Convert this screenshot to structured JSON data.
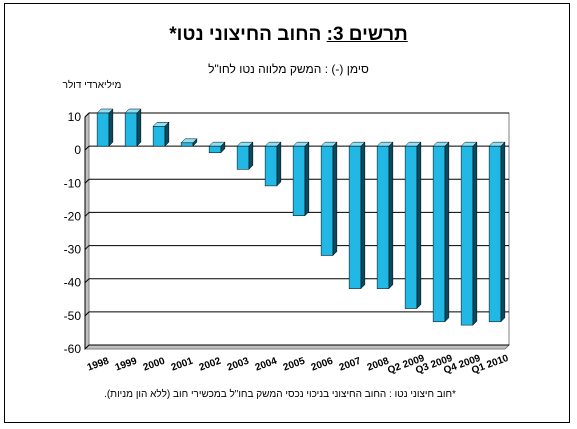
{
  "title_label": "תרשים 3:",
  "title_rest": "החוב החיצוני נטו*",
  "subtitle": "סימן (-) : המשק מלווה נטו לחו\"ל",
  "unit_label": "מיליארדי דולר",
  "footnote": "*חוב חיצוני נטו : החוב החיצוני בניכוי נכסי המשק בחו\"ל במכשירי חוב (ללא הון מניות).",
  "colors": {
    "bar_front": "#22b8e6",
    "bar_side": "#0b4a5e",
    "bar_top": "#8fe0f7",
    "grid": "#000000",
    "plot_bg": "#ffffff"
  },
  "chart_data": {
    "type": "bar",
    "categories": [
      "1998",
      "1999",
      "2000",
      "2001",
      "2002",
      "2003",
      "2004",
      "2005",
      "2006",
      "2007",
      "2008",
      "Q2 2009",
      "Q3 2009",
      "Q4 2009",
      "Q1 2010"
    ],
    "values": [
      10,
      10,
      6,
      1,
      -2,
      -7,
      -12,
      -21,
      -33,
      -43,
      -43,
      -49,
      -53,
      -54,
      -53
    ],
    "ylim": [
      -60,
      10
    ],
    "yticks": [
      10,
      0,
      -10,
      -20,
      -30,
      -40,
      -50,
      -60
    ],
    "grid": true,
    "title": "החוב החיצוני נטו*",
    "ylabel": "מיליארדי דולר"
  }
}
